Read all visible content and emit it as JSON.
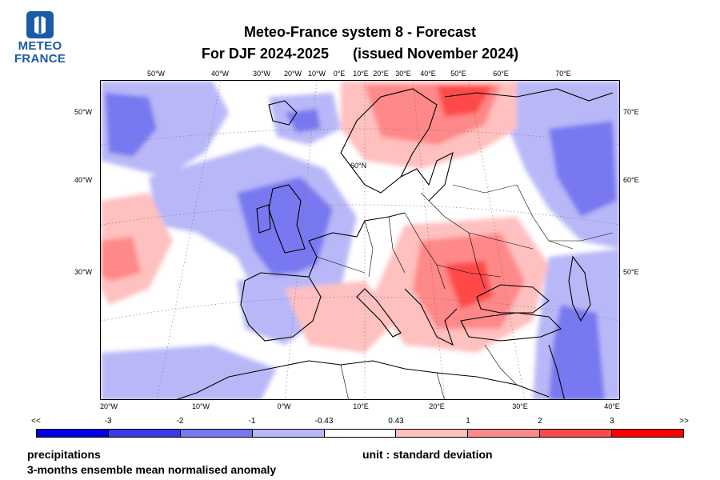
{
  "logo": {
    "line1": "METEO",
    "line2": "FRANCE",
    "brand_color": "#1a5aa6"
  },
  "title": {
    "line1": "Meteo-France system 8  -  Forecast",
    "line2": "For DJF 2024-2025      (issued November 2024)"
  },
  "axes": {
    "top": [
      "50°W",
      "40°W",
      "30°W",
      "20°W",
      "10°W",
      "0°E",
      "10°E",
      "20°E",
      "30°E",
      "40°E",
      "50°E",
      "60°E",
      "70°E"
    ],
    "bottom": [
      "20°W",
      "10°W",
      "0°W",
      "10°E",
      "20°E",
      "30°E",
      "40°E"
    ],
    "left": [
      "50°W",
      "40°W",
      "30°W"
    ],
    "right": [
      "70°E",
      "60°E",
      "50°E"
    ],
    "map_label": "60°N"
  },
  "legend": {
    "labels": [
      "<<",
      "-3",
      "-2",
      "-1",
      "-0.43",
      "0.43",
      "1",
      "2",
      "3",
      ">>"
    ],
    "colors": [
      "#0000e0",
      "#3a3ae8",
      "#7878f0",
      "#b8b8f8",
      "#ffffff",
      "#ffc0c0",
      "#ff8888",
      "#ff4a4a",
      "#ff0000"
    ]
  },
  "footer": {
    "variable": "precipitations",
    "description": "3-months ensemble mean normalised anomaly",
    "unit": "unit : standard deviation"
  }
}
